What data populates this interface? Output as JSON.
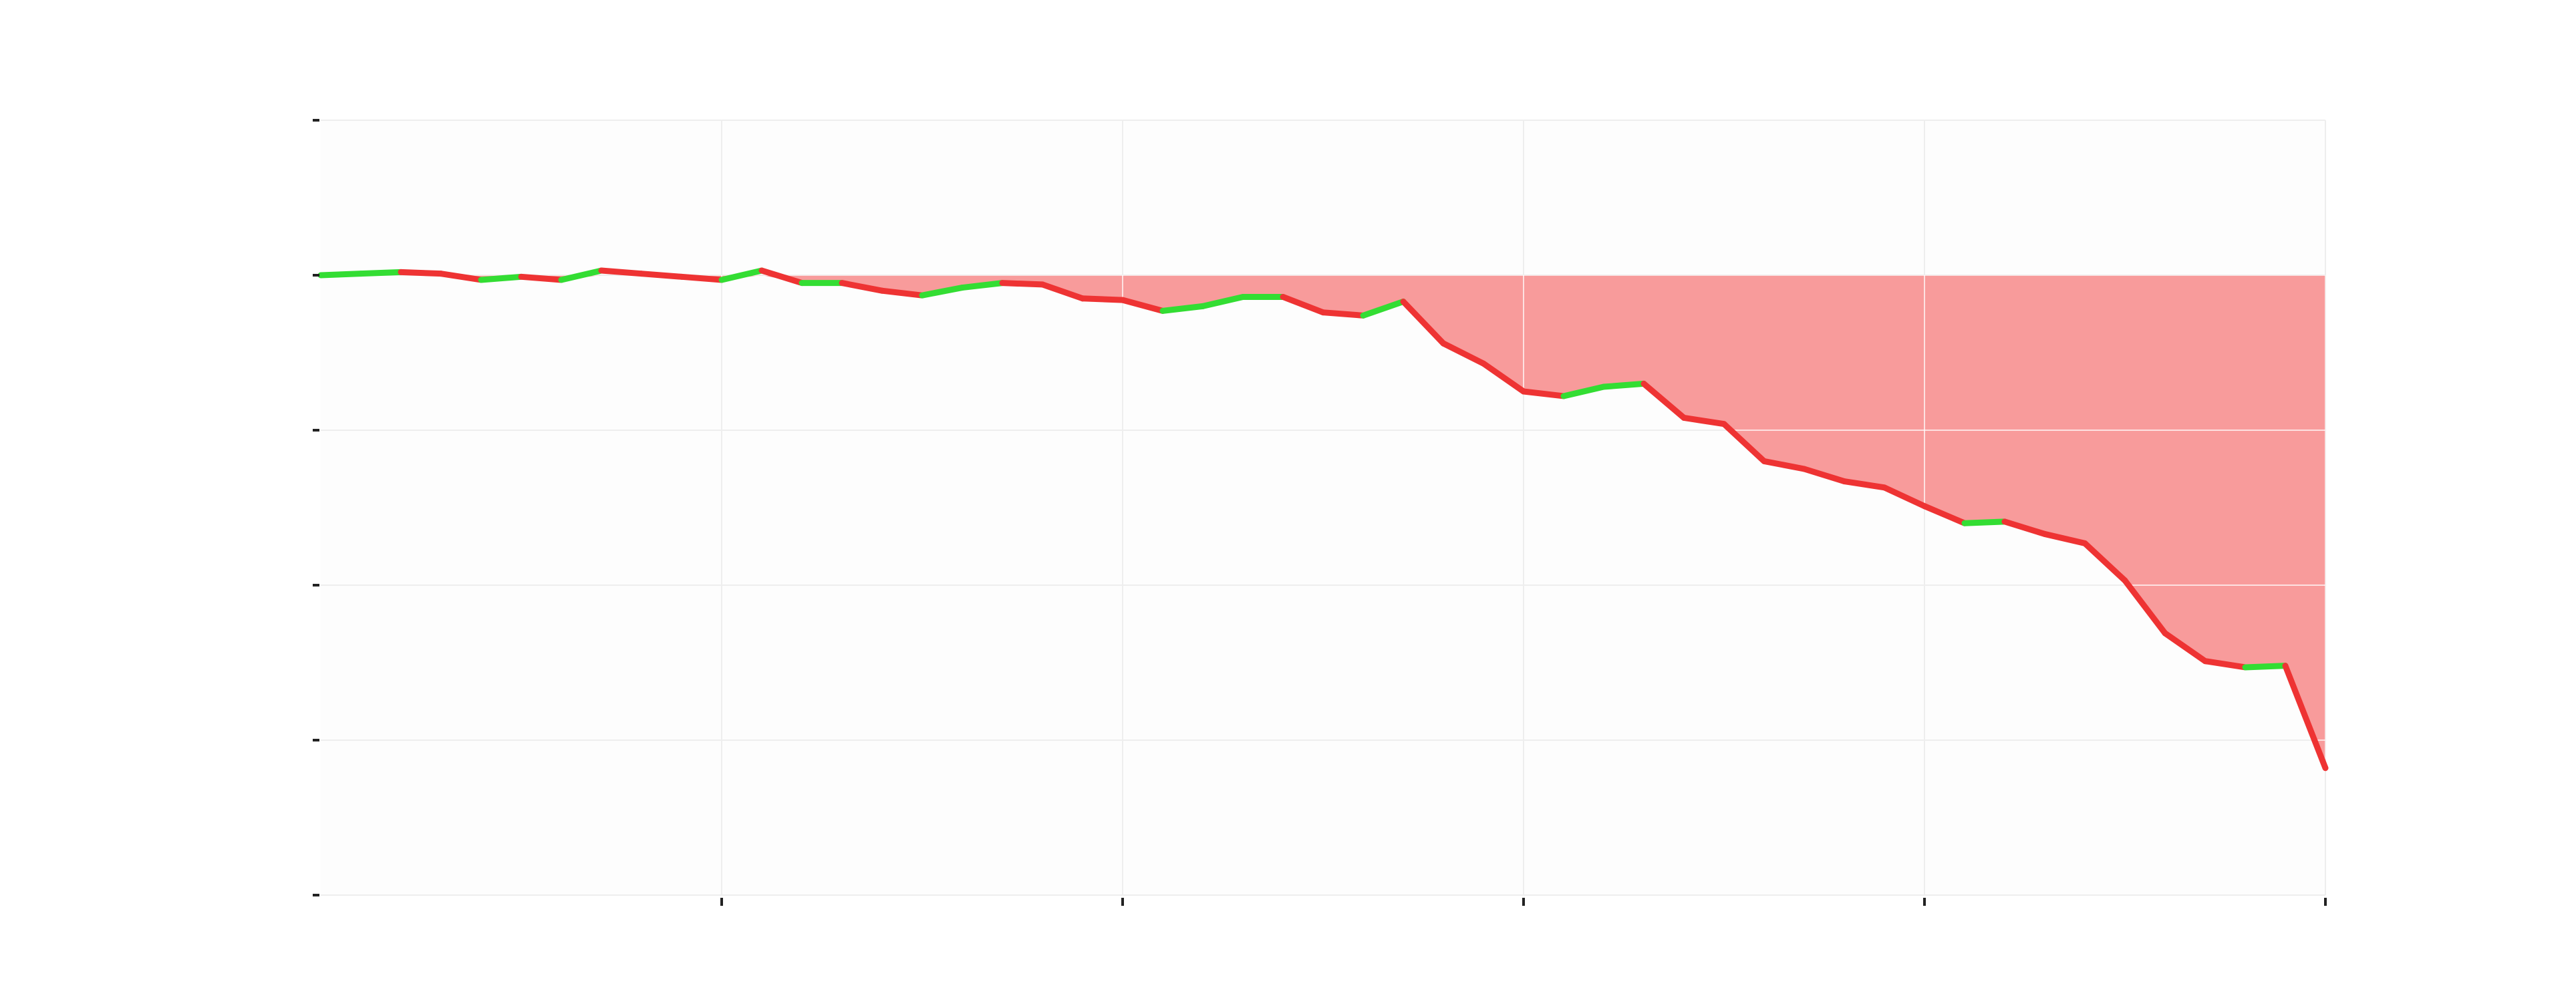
{
  "chart_data": {
    "type": "line",
    "title": "",
    "xlabel": "",
    "ylabel": "",
    "baseline": 0,
    "xlim": [
      0,
      50
    ],
    "ylim": [
      -4,
      1
    ],
    "x_tick_values": [
      10,
      20,
      30,
      40,
      50
    ],
    "y_tick_values": [
      -4,
      -3,
      -2,
      -1,
      0,
      1
    ],
    "x_tick_labels": [],
    "y_tick_labels": [],
    "grid": true,
    "legend": "none",
    "colors": {
      "positive": "#33dd33",
      "negative": "#ee3333",
      "fill": "#f89b9b",
      "grid": "#eeeeee",
      "plot_background": "#fdfdfd"
    },
    "series": [
      {
        "x": [
          0,
          1,
          2,
          3,
          4,
          5,
          6,
          7,
          8,
          9,
          10,
          11,
          12,
          13,
          14,
          15,
          16,
          17,
          18,
          19,
          20,
          21,
          22,
          23,
          24,
          25,
          26,
          27,
          28,
          29,
          30,
          31,
          32,
          33,
          34,
          35,
          36,
          37,
          38,
          39,
          40,
          41,
          42,
          43,
          44,
          45,
          46,
          47,
          48,
          49,
          50
        ],
        "values": [
          0.0,
          0.01,
          0.02,
          0.01,
          -0.03,
          -0.01,
          -0.03,
          0.03,
          0.01,
          -0.01,
          -0.03,
          0.03,
          -0.05,
          -0.05,
          -0.1,
          -0.13,
          -0.08,
          -0.05,
          -0.06,
          -0.15,
          -0.16,
          -0.23,
          -0.2,
          -0.14,
          -0.14,
          -0.24,
          -0.26,
          -0.17,
          -0.44,
          -0.57,
          -0.75,
          -0.78,
          -0.72,
          -0.7,
          -0.92,
          -0.96,
          -1.2,
          -1.25,
          -1.33,
          -1.37,
          -1.49,
          -1.6,
          -1.59,
          -1.67,
          -1.73,
          -1.97,
          -2.31,
          -2.49,
          -2.53,
          -2.52,
          -3.18
        ]
      }
    ]
  }
}
